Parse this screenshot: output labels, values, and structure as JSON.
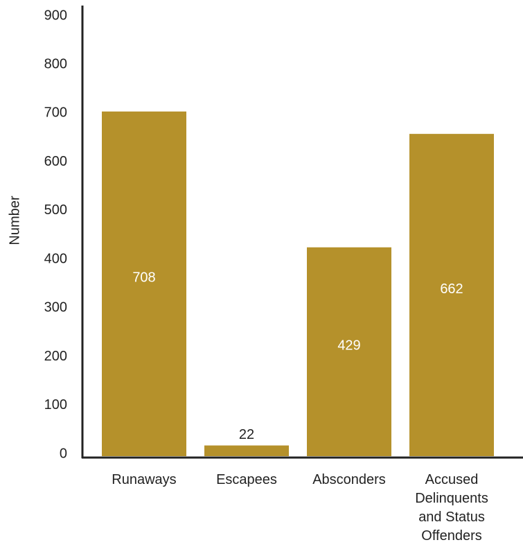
{
  "chart_data": {
    "type": "bar",
    "y_label": "Number",
    "categories": [
      "Runaways",
      "Escapees",
      "Absconders",
      "Accused Delinquents and Status Offenders"
    ],
    "values": [
      708,
      22,
      429,
      662
    ],
    "color": "#b5912b",
    "ylim": [
      0,
      900
    ],
    "yticks": [
      0,
      100,
      200,
      300,
      400,
      500,
      600,
      700,
      800,
      900
    ]
  }
}
